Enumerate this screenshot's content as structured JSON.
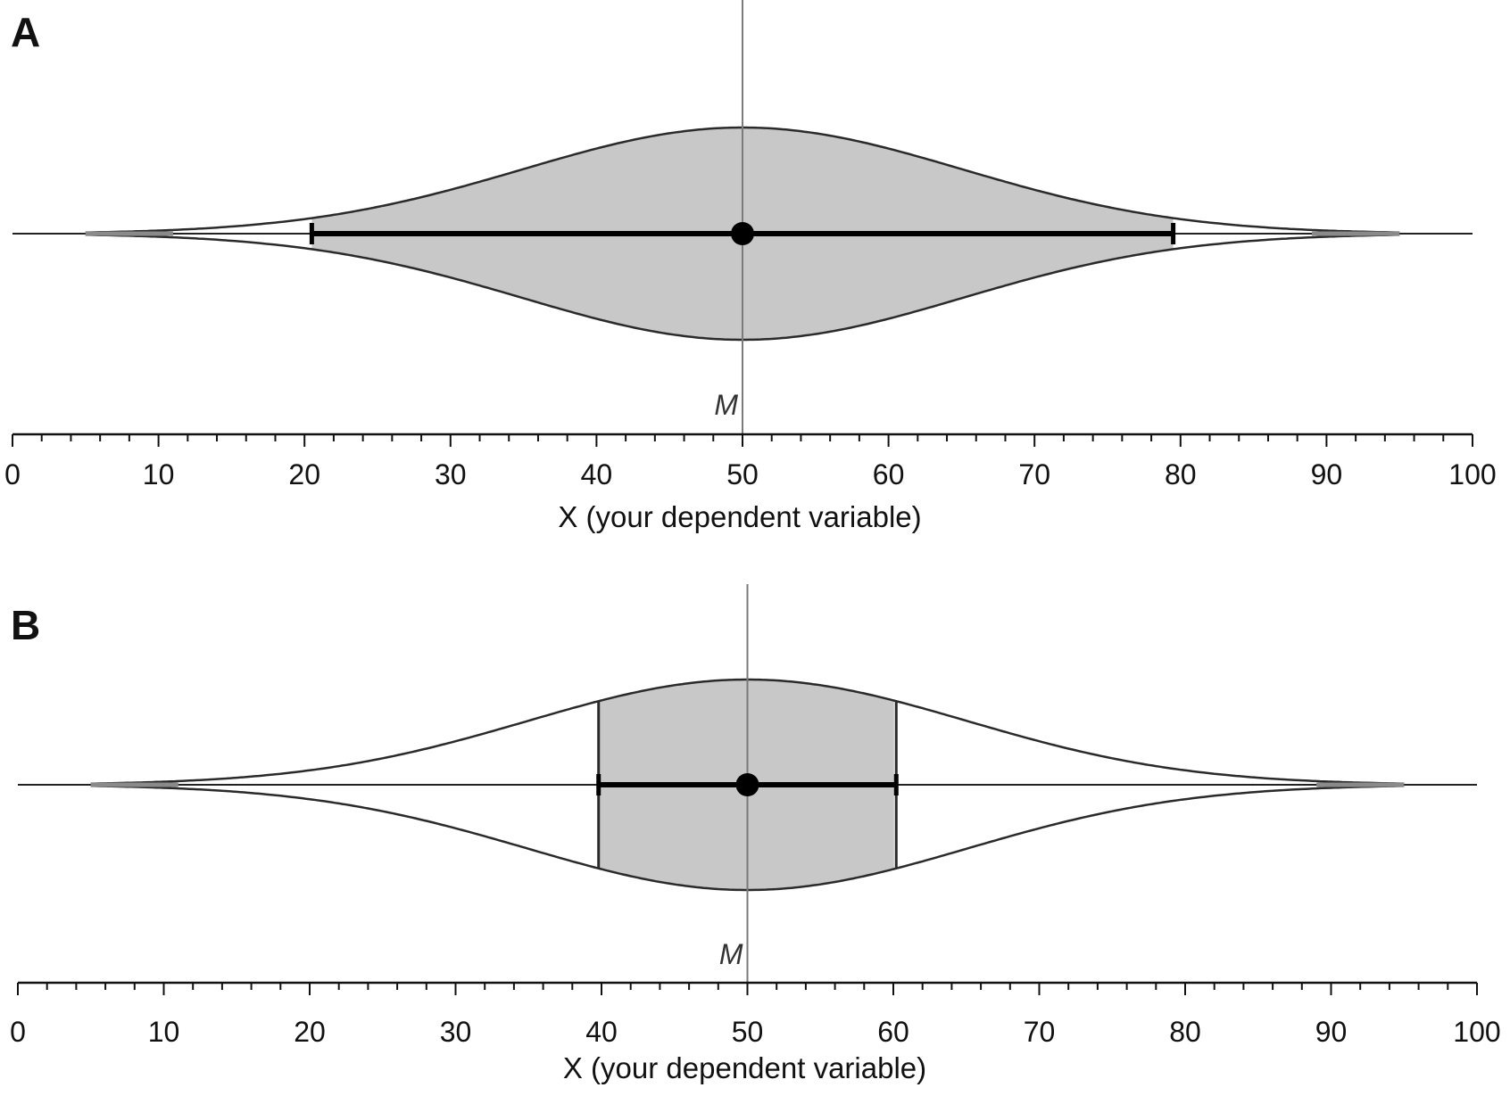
{
  "chart_data": [
    {
      "panel_label": "A",
      "type": "area",
      "kind": "cat's eye (confidence interval density)",
      "distribution": "normal",
      "mean": 50,
      "mean_label": "M",
      "ci": [
        20.5,
        79.5
      ],
      "tails": [
        5,
        95
      ],
      "shaded_region": "within CI",
      "xlabel": "X (your dependent variable)",
      "xlim": [
        0,
        100
      ],
      "x_ticks_major": [
        "0",
        "10",
        "20",
        "30",
        "40",
        "50",
        "60",
        "70",
        "80",
        "90",
        "100"
      ],
      "x_tick_minor_step": 2,
      "colors": {
        "fill": "#c8c8c8",
        "outline": "#2a2a2a",
        "mean_line": "#7a7a7a"
      }
    },
    {
      "panel_label": "B",
      "type": "area",
      "kind": "cat's eye (confidence interval density)",
      "distribution": "normal",
      "mean": 50,
      "mean_label": "M",
      "ci": [
        39.8,
        60.2
      ],
      "tails": [
        5,
        95
      ],
      "shaded_region": "within CI",
      "xlabel": "X (your dependent variable)",
      "xlim": [
        0,
        100
      ],
      "x_ticks_major": [
        "0",
        "10",
        "20",
        "30",
        "40",
        "50",
        "60",
        "70",
        "80",
        "90",
        "100"
      ],
      "x_tick_minor_step": 2,
      "colors": {
        "fill": "#c8c8c8",
        "outline": "#2a2a2a",
        "mean_line": "#7a7a7a"
      }
    }
  ]
}
